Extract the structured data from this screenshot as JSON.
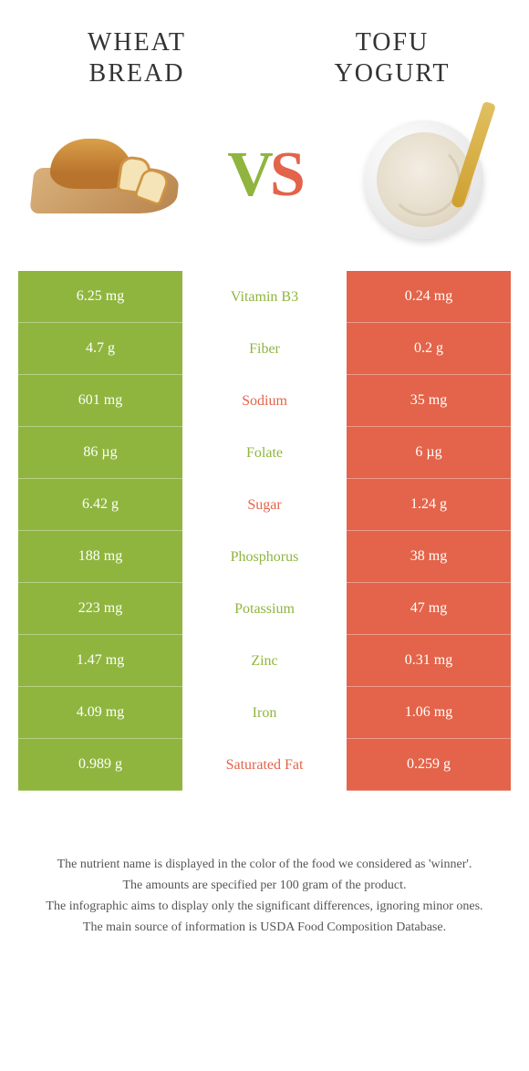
{
  "colors": {
    "left": "#8fb53f",
    "right": "#e3644a",
    "mid_bg": "#ffffff"
  },
  "left_title": "WHEAT BREAD",
  "right_title": "TOFU YOGURT",
  "vs": {
    "v": "V",
    "s": "S"
  },
  "rows": [
    {
      "left": "6.25 mg",
      "mid": "Vitamin B3",
      "right": "0.24 mg",
      "winner": "left"
    },
    {
      "left": "4.7 g",
      "mid": "Fiber",
      "right": "0.2 g",
      "winner": "left"
    },
    {
      "left": "601 mg",
      "mid": "Sodium",
      "right": "35 mg",
      "winner": "right"
    },
    {
      "left": "86 µg",
      "mid": "Folate",
      "right": "6 µg",
      "winner": "left"
    },
    {
      "left": "6.42 g",
      "mid": "Sugar",
      "right": "1.24 g",
      "winner": "right"
    },
    {
      "left": "188 mg",
      "mid": "Phosphorus",
      "right": "38 mg",
      "winner": "left"
    },
    {
      "left": "223 mg",
      "mid": "Potassium",
      "right": "47 mg",
      "winner": "left"
    },
    {
      "left": "1.47 mg",
      "mid": "Zinc",
      "right": "0.31 mg",
      "winner": "left"
    },
    {
      "left": "4.09 mg",
      "mid": "Iron",
      "right": "1.06 mg",
      "winner": "left"
    },
    {
      "left": "0.989 g",
      "mid": "Saturated Fat",
      "right": "0.259 g",
      "winner": "right"
    }
  ],
  "footer": [
    "The nutrient name is displayed in the color of the food we considered as 'winner'.",
    "The amounts are specified per 100 gram of the product.",
    "The infographic aims to display only the significant differences, ignoring minor ones.",
    "The main source of information is USDA Food Composition Database."
  ]
}
